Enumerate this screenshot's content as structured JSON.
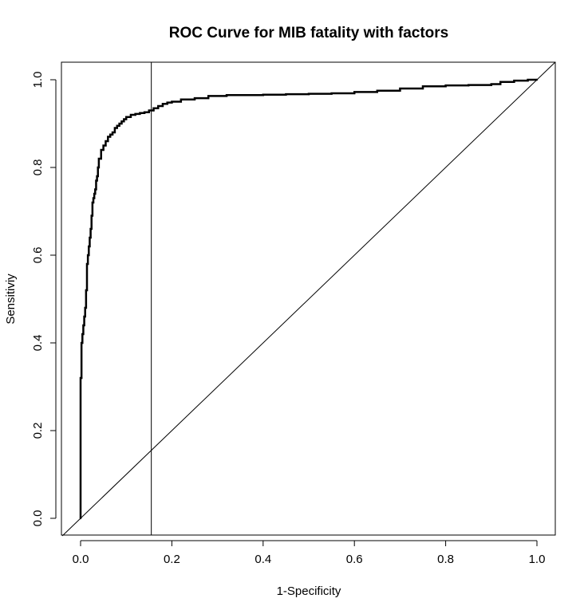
{
  "chart_data": {
    "type": "line",
    "title": "ROC Curve for MIB fatality with factors",
    "xlabel": "1-Specificity",
    "ylabel": "Sensitiviy",
    "xlim": [
      0.0,
      1.0
    ],
    "ylim": [
      0.0,
      1.0
    ],
    "x_ticks": [
      "0.0",
      "0.2",
      "0.4",
      "0.6",
      "0.8",
      "1.0"
    ],
    "y_ticks": [
      "0.0",
      "0.2",
      "0.4",
      "0.6",
      "0.8",
      "1.0"
    ],
    "grid": false,
    "legend": "none",
    "series": [
      {
        "style": "thick-step",
        "color": "#000000",
        "x": [
          0.0,
          0.002,
          0.004,
          0.006,
          0.008,
          0.01,
          0.012,
          0.014,
          0.016,
          0.018,
          0.02,
          0.022,
          0.024,
          0.026,
          0.028,
          0.03,
          0.032,
          0.034,
          0.036,
          0.038,
          0.04,
          0.045,
          0.05,
          0.055,
          0.06,
          0.065,
          0.07,
          0.075,
          0.08,
          0.085,
          0.09,
          0.095,
          0.1,
          0.11,
          0.12,
          0.13,
          0.14,
          0.15,
          0.16,
          0.17,
          0.18,
          0.19,
          0.2,
          0.22,
          0.25,
          0.28,
          0.32,
          0.4,
          0.45,
          0.5,
          0.55,
          0.6,
          0.65,
          0.7,
          0.75,
          0.8,
          0.85,
          0.9,
          0.92,
          0.95,
          0.98,
          1.0
        ],
        "y": [
          0.0,
          0.32,
          0.4,
          0.42,
          0.44,
          0.46,
          0.48,
          0.52,
          0.58,
          0.6,
          0.62,
          0.64,
          0.66,
          0.69,
          0.72,
          0.73,
          0.74,
          0.75,
          0.77,
          0.78,
          0.8,
          0.82,
          0.84,
          0.85,
          0.86,
          0.87,
          0.875,
          0.88,
          0.89,
          0.895,
          0.9,
          0.905,
          0.91,
          0.915,
          0.92,
          0.922,
          0.924,
          0.926,
          0.93,
          0.935,
          0.94,
          0.945,
          0.948,
          0.95,
          0.955,
          0.958,
          0.963,
          0.965,
          0.966,
          0.967,
          0.968,
          0.969,
          0.972,
          0.975,
          0.98,
          0.985,
          0.987,
          0.988,
          0.99,
          0.995,
          0.998,
          1.0
        ]
      },
      {
        "style": "reference-diagonal",
        "color": "#000000",
        "x": [
          0.0,
          1.0
        ],
        "y": [
          0.0,
          1.0
        ]
      }
    ],
    "annotations": [
      {
        "type": "vertical-line",
        "x": 0.155
      }
    ]
  }
}
